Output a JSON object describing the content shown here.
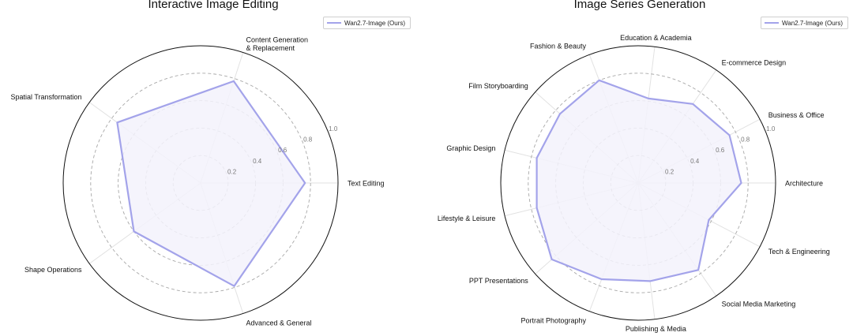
{
  "chart_data": [
    {
      "type": "radar",
      "title": "Interactive Image Editing",
      "categories": [
        "Text Editing",
        "Content Generation\n& Replacement",
        "Spatial Transformation",
        "Shape Operations",
        "Advanced & General"
      ],
      "series": [
        {
          "name": "Wan2.7-Image (Ours)",
          "values": [
            0.76,
            0.78,
            0.75,
            0.6,
            0.79
          ]
        }
      ],
      "radial_ticks": [
        "0.2",
        "0.4",
        "0.6",
        "0.8",
        "1.0"
      ],
      "rlim": [
        0,
        1
      ],
      "grid": true,
      "legend": "top-right"
    },
    {
      "type": "radar",
      "title": "Image Series Generation",
      "categories": [
        "Architecture",
        "Business & Office",
        "E-commerce Design",
        "Education & Academia",
        "Fashion & Beauty",
        "Film Storyboarding",
        "Graphic Design",
        "Lifestyle & Leisure",
        "PPT Presentations",
        "Portrait Photography",
        "Publishing & Media",
        "Social Media Marketing",
        "Tech & Engineering"
      ],
      "series": [
        {
          "name": "Wan2.7-Image (Ours)",
          "values": [
            0.75,
            0.75,
            0.7,
            0.62,
            0.8,
            0.76,
            0.76,
            0.76,
            0.84,
            0.75,
            0.72,
            0.77,
            0.58
          ]
        }
      ],
      "radial_ticks": [
        "0.2",
        "0.4",
        "0.6",
        "0.8",
        "1.0"
      ],
      "rlim": [
        0,
        1
      ],
      "grid": true,
      "legend": "top-right"
    }
  ],
  "style": {
    "series_color": "#a3a3ea",
    "fill_color": "#f3f2fb",
    "grid_color": "#a8a8a8",
    "spoke_color": "#e2e2e2",
    "outer_color": "#111111"
  }
}
